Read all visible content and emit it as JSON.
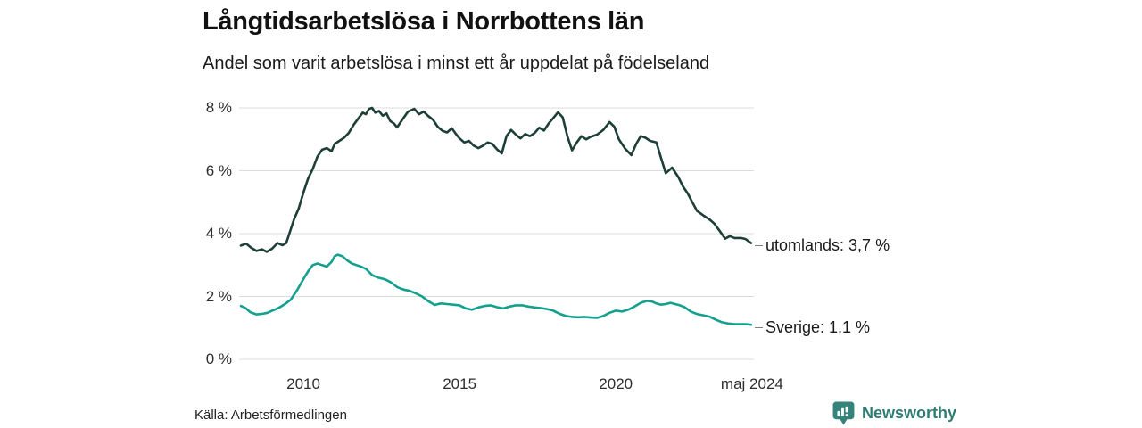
{
  "header": {
    "title": "Långtidsarbetslösa i Norrbottens län",
    "subtitle": "Andel som varit arbetslösa i minst ett år uppdelat på födelseland"
  },
  "footer": {
    "source": "Källa: Arbetsförmedlingen",
    "brand_name": "Newsworthy",
    "brand_color": "#35837a",
    "brand_text_color": "#2f7d72"
  },
  "chart_data": {
    "type": "line",
    "title": "Långtidsarbetslösa i Norrbottens län",
    "subtitle": "Andel som varit arbetslösa i minst ett år uppdelat på födelseland",
    "xlabel": "",
    "ylabel": "",
    "x_domain": [
      2008,
      2024.42
    ],
    "ylim": [
      0,
      8
    ],
    "grid": true,
    "gridline_color": "#dcdcdc",
    "legend_position": "right-of-line-end",
    "yticks": [
      {
        "value": 8,
        "label": "8 %"
      },
      {
        "value": 6,
        "label": "6 %"
      },
      {
        "value": 4,
        "label": "4 %"
      },
      {
        "value": 2,
        "label": "2 %"
      },
      {
        "value": 0,
        "label": "0 %"
      }
    ],
    "xticks": [
      {
        "value": 2010,
        "label": "2010"
      },
      {
        "value": 2015,
        "label": "2015"
      },
      {
        "value": 2020,
        "label": "2020"
      },
      {
        "value": 2024.36,
        "label": "maj 2024"
      }
    ],
    "series": [
      {
        "name": "utomlands",
        "label": "utomlands: 3,7 %",
        "end_value": "3,7 %",
        "color": "#1e3f37",
        "points": [
          [
            2008.0,
            3.62
          ],
          [
            2008.17,
            3.68
          ],
          [
            2008.33,
            3.55
          ],
          [
            2008.5,
            3.45
          ],
          [
            2008.67,
            3.5
          ],
          [
            2008.83,
            3.42
          ],
          [
            2009.0,
            3.52
          ],
          [
            2009.17,
            3.7
          ],
          [
            2009.33,
            3.63
          ],
          [
            2009.45,
            3.7
          ],
          [
            2009.55,
            4.0
          ],
          [
            2009.7,
            4.45
          ],
          [
            2009.85,
            4.8
          ],
          [
            2010.0,
            5.3
          ],
          [
            2010.15,
            5.75
          ],
          [
            2010.3,
            6.05
          ],
          [
            2010.45,
            6.45
          ],
          [
            2010.6,
            6.67
          ],
          [
            2010.75,
            6.72
          ],
          [
            2010.9,
            6.62
          ],
          [
            2011.0,
            6.85
          ],
          [
            2011.15,
            6.95
          ],
          [
            2011.3,
            7.05
          ],
          [
            2011.45,
            7.2
          ],
          [
            2011.6,
            7.45
          ],
          [
            2011.75,
            7.65
          ],
          [
            2011.9,
            7.85
          ],
          [
            2012.0,
            7.8
          ],
          [
            2012.1,
            7.97
          ],
          [
            2012.2,
            8.0
          ],
          [
            2012.3,
            7.85
          ],
          [
            2012.42,
            7.9
          ],
          [
            2012.54,
            7.75
          ],
          [
            2012.66,
            7.82
          ],
          [
            2012.78,
            7.58
          ],
          [
            2012.9,
            7.5
          ],
          [
            2013.0,
            7.38
          ],
          [
            2013.15,
            7.6
          ],
          [
            2013.35,
            7.88
          ],
          [
            2013.55,
            7.97
          ],
          [
            2013.7,
            7.8
          ],
          [
            2013.85,
            7.88
          ],
          [
            2014.0,
            7.74
          ],
          [
            2014.15,
            7.62
          ],
          [
            2014.3,
            7.4
          ],
          [
            2014.45,
            7.27
          ],
          [
            2014.6,
            7.22
          ],
          [
            2014.75,
            7.35
          ],
          [
            2014.9,
            7.15
          ],
          [
            2015.0,
            7.03
          ],
          [
            2015.15,
            6.9
          ],
          [
            2015.3,
            6.95
          ],
          [
            2015.45,
            6.8
          ],
          [
            2015.6,
            6.72
          ],
          [
            2015.75,
            6.8
          ],
          [
            2015.9,
            6.9
          ],
          [
            2016.05,
            6.85
          ],
          [
            2016.2,
            6.68
          ],
          [
            2016.35,
            6.55
          ],
          [
            2016.5,
            7.1
          ],
          [
            2016.65,
            7.3
          ],
          [
            2016.8,
            7.15
          ],
          [
            2016.95,
            7.03
          ],
          [
            2017.1,
            7.17
          ],
          [
            2017.25,
            7.1
          ],
          [
            2017.4,
            7.2
          ],
          [
            2017.55,
            7.37
          ],
          [
            2017.7,
            7.28
          ],
          [
            2017.85,
            7.5
          ],
          [
            2018.0,
            7.68
          ],
          [
            2018.15,
            7.86
          ],
          [
            2018.3,
            7.7
          ],
          [
            2018.45,
            7.1
          ],
          [
            2018.6,
            6.65
          ],
          [
            2018.75,
            6.9
          ],
          [
            2018.9,
            7.1
          ],
          [
            2019.05,
            7.0
          ],
          [
            2019.2,
            7.08
          ],
          [
            2019.4,
            7.15
          ],
          [
            2019.6,
            7.3
          ],
          [
            2019.8,
            7.55
          ],
          [
            2019.95,
            7.4
          ],
          [
            2020.1,
            7.0
          ],
          [
            2020.3,
            6.7
          ],
          [
            2020.5,
            6.5
          ],
          [
            2020.65,
            6.85
          ],
          [
            2020.8,
            7.1
          ],
          [
            2020.95,
            7.05
          ],
          [
            2021.1,
            6.95
          ],
          [
            2021.3,
            6.9
          ],
          [
            2021.45,
            6.4
          ],
          [
            2021.6,
            5.92
          ],
          [
            2021.8,
            6.1
          ],
          [
            2022.0,
            5.8
          ],
          [
            2022.15,
            5.5
          ],
          [
            2022.3,
            5.28
          ],
          [
            2022.45,
            5.0
          ],
          [
            2022.6,
            4.72
          ],
          [
            2022.8,
            4.58
          ],
          [
            2023.0,
            4.45
          ],
          [
            2023.15,
            4.32
          ],
          [
            2023.3,
            4.12
          ],
          [
            2023.5,
            3.84
          ],
          [
            2023.65,
            3.92
          ],
          [
            2023.8,
            3.86
          ],
          [
            2024.0,
            3.86
          ],
          [
            2024.15,
            3.83
          ],
          [
            2024.33,
            3.7
          ]
        ]
      },
      {
        "name": "Sverige",
        "label": "Sverige: 1,1 %",
        "end_value": "1,1 %",
        "color": "#14a08e",
        "points": [
          [
            2008.0,
            1.7
          ],
          [
            2008.15,
            1.63
          ],
          [
            2008.3,
            1.5
          ],
          [
            2008.5,
            1.43
          ],
          [
            2008.7,
            1.45
          ],
          [
            2008.85,
            1.48
          ],
          [
            2009.0,
            1.55
          ],
          [
            2009.2,
            1.63
          ],
          [
            2009.4,
            1.75
          ],
          [
            2009.6,
            1.9
          ],
          [
            2009.8,
            2.2
          ],
          [
            2010.0,
            2.55
          ],
          [
            2010.15,
            2.8
          ],
          [
            2010.3,
            3.0
          ],
          [
            2010.45,
            3.05
          ],
          [
            2010.6,
            3.0
          ],
          [
            2010.75,
            2.95
          ],
          [
            2010.9,
            3.1
          ],
          [
            2011.0,
            3.28
          ],
          [
            2011.1,
            3.33
          ],
          [
            2011.25,
            3.28
          ],
          [
            2011.4,
            3.15
          ],
          [
            2011.55,
            3.05
          ],
          [
            2011.7,
            3.0
          ],
          [
            2011.85,
            2.95
          ],
          [
            2012.0,
            2.88
          ],
          [
            2012.2,
            2.68
          ],
          [
            2012.4,
            2.6
          ],
          [
            2012.6,
            2.55
          ],
          [
            2012.8,
            2.45
          ],
          [
            2013.0,
            2.3
          ],
          [
            2013.2,
            2.22
          ],
          [
            2013.4,
            2.18
          ],
          [
            2013.6,
            2.1
          ],
          [
            2013.8,
            2.0
          ],
          [
            2014.0,
            1.85
          ],
          [
            2014.2,
            1.73
          ],
          [
            2014.4,
            1.78
          ],
          [
            2014.6,
            1.76
          ],
          [
            2014.8,
            1.74
          ],
          [
            2015.0,
            1.72
          ],
          [
            2015.2,
            1.62
          ],
          [
            2015.4,
            1.58
          ],
          [
            2015.6,
            1.65
          ],
          [
            2015.8,
            1.7
          ],
          [
            2016.0,
            1.72
          ],
          [
            2016.2,
            1.66
          ],
          [
            2016.4,
            1.62
          ],
          [
            2016.6,
            1.68
          ],
          [
            2016.8,
            1.72
          ],
          [
            2017.0,
            1.72
          ],
          [
            2017.2,
            1.68
          ],
          [
            2017.4,
            1.65
          ],
          [
            2017.6,
            1.63
          ],
          [
            2017.8,
            1.6
          ],
          [
            2018.0,
            1.55
          ],
          [
            2018.2,
            1.45
          ],
          [
            2018.4,
            1.38
          ],
          [
            2018.6,
            1.35
          ],
          [
            2018.8,
            1.34
          ],
          [
            2019.0,
            1.35
          ],
          [
            2019.2,
            1.33
          ],
          [
            2019.4,
            1.32
          ],
          [
            2019.6,
            1.38
          ],
          [
            2019.8,
            1.48
          ],
          [
            2020.0,
            1.55
          ],
          [
            2020.2,
            1.52
          ],
          [
            2020.4,
            1.58
          ],
          [
            2020.6,
            1.68
          ],
          [
            2020.8,
            1.8
          ],
          [
            2021.0,
            1.86
          ],
          [
            2021.15,
            1.84
          ],
          [
            2021.3,
            1.78
          ],
          [
            2021.45,
            1.74
          ],
          [
            2021.6,
            1.76
          ],
          [
            2021.75,
            1.8
          ],
          [
            2021.9,
            1.76
          ],
          [
            2022.05,
            1.72
          ],
          [
            2022.2,
            1.66
          ],
          [
            2022.4,
            1.52
          ],
          [
            2022.6,
            1.44
          ],
          [
            2022.8,
            1.4
          ],
          [
            2023.0,
            1.36
          ],
          [
            2023.2,
            1.26
          ],
          [
            2023.4,
            1.18
          ],
          [
            2023.6,
            1.14
          ],
          [
            2023.8,
            1.12
          ],
          [
            2024.0,
            1.12
          ],
          [
            2024.17,
            1.12
          ],
          [
            2024.33,
            1.1
          ]
        ]
      }
    ]
  }
}
